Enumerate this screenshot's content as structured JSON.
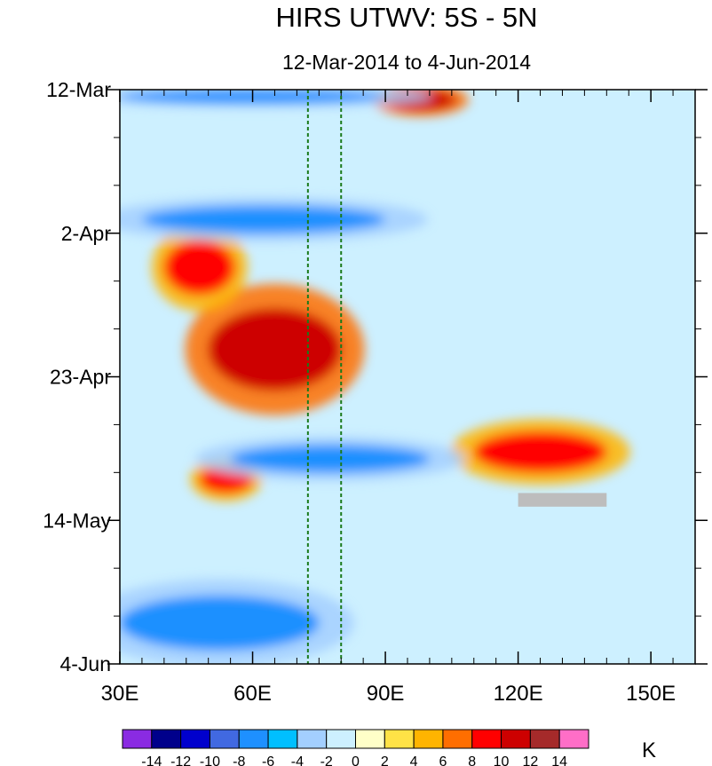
{
  "chart_data": {
    "type": "heatmap",
    "title": "HIRS UTWV: 5S - 5N",
    "subtitle": "12-Mar-2014 to 4-Jun-2014",
    "x_axis": {
      "range": [
        30,
        160
      ],
      "units": "longitude (°E)",
      "ticks": [
        30,
        60,
        90,
        120,
        150
      ],
      "tick_labels": [
        "30E",
        "60E",
        "90E",
        "120E",
        "150E"
      ]
    },
    "y_axis": {
      "range_days": [
        0,
        84
      ],
      "direction": "time increases downward",
      "ticks_days": [
        0,
        21,
        42,
        63,
        84
      ],
      "tick_labels": [
        "12-Mar",
        "2-Apr",
        "23-Apr",
        "14-May",
        "4-Jun"
      ]
    },
    "reference_lines_lon": [
      72.5,
      80
    ],
    "colorbar": {
      "units_label": "K",
      "levels": [
        -14,
        -12,
        -10,
        -8,
        -6,
        -4,
        -2,
        0,
        2,
        4,
        6,
        8,
        10,
        12,
        14
      ],
      "level_labels": [
        "-14",
        "-12",
        "-10",
        "-8",
        "-6",
        "-4",
        "-2",
        "0",
        "2",
        "4",
        "6",
        "8",
        "10",
        "12",
        "14"
      ],
      "colors": [
        "#8a2be2",
        "#00008b",
        "#0000cd",
        "#4169e1",
        "#1e90ff",
        "#00bfff",
        "#a3cfff",
        "#cdf0ff",
        "#ffffc8",
        "#ffe246",
        "#ffb400",
        "#ff6e00",
        "#ff0000",
        "#cd0000",
        "#a52a2a",
        "#ff6ec7"
      ]
    },
    "anomaly_features": [
      {
        "label": "strong positive",
        "lon": [
          50,
          80
        ],
        "days": [
          32,
          44
        ],
        "value": 11
      },
      {
        "label": "positive",
        "lon": [
          40,
          56
        ],
        "days": [
          22,
          30
        ],
        "value": 8
      },
      {
        "label": "positive",
        "lon": [
          90,
          106
        ],
        "days": [
          0,
          3
        ],
        "value": 10
      },
      {
        "label": "positive",
        "lon": [
          48,
          60
        ],
        "days": [
          55,
          59
        ],
        "value": 9
      },
      {
        "label": "positive",
        "lon": [
          110,
          140
        ],
        "days": [
          50,
          56
        ],
        "value": 9
      },
      {
        "label": "negative",
        "lon": [
          30,
          90
        ],
        "days": [
          0,
          2
        ],
        "value": -8
      },
      {
        "label": "negative",
        "lon": [
          35,
          90
        ],
        "days": [
          17,
          21
        ],
        "value": -7
      },
      {
        "label": "negative",
        "lon": [
          55,
          100
        ],
        "days": [
          52,
          56
        ],
        "value": -7
      },
      {
        "label": "negative",
        "lon": [
          30,
          75
        ],
        "days": [
          74,
          82
        ],
        "value": -8
      },
      {
        "label": "missing",
        "lon": [
          120,
          140
        ],
        "days": [
          59,
          61
        ],
        "value": null
      }
    ]
  }
}
